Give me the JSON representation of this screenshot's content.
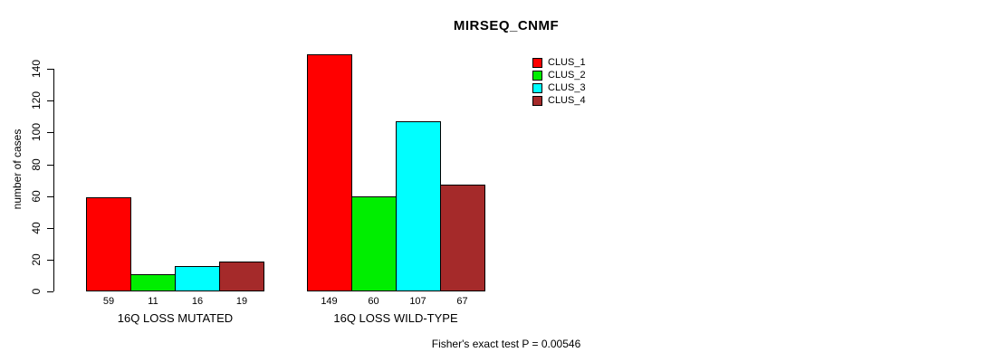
{
  "chart_data": {
    "type": "bar",
    "title": "MIRSEQ_CNMF",
    "ylabel": "number of cases",
    "xlabel": "",
    "categories": [
      "16Q LOSS MUTATED",
      "16Q LOSS WILD-TYPE"
    ],
    "series": [
      {
        "name": "CLUS_1",
        "color": "#FF0000",
        "values": [
          59,
          149
        ]
      },
      {
        "name": "CLUS_2",
        "color": "#00EE00",
        "values": [
          11,
          60
        ]
      },
      {
        "name": "CLUS_3",
        "color": "#00FFFF",
        "values": [
          16,
          107
        ]
      },
      {
        "name": "CLUS_4",
        "color": "#A52A2A",
        "values": [
          19,
          67
        ]
      }
    ],
    "y_ticks": [
      0,
      20,
      40,
      60,
      80,
      100,
      120,
      140
    ],
    "ylim": [
      0,
      149
    ],
    "grid": false,
    "legend_position": "top-right",
    "bar_value_labels": true,
    "annotation": "Fisher's exact test P = 0.00546",
    "text_color": "#000000",
    "background_color": "#FFFFFF"
  }
}
